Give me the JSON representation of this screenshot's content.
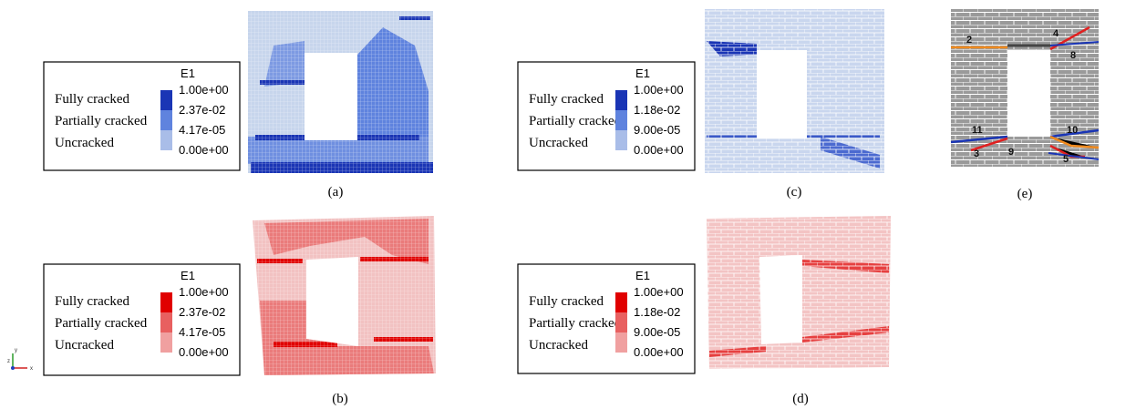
{
  "legends": [
    {
      "title": "E1",
      "labels": [
        "Fully cracked",
        "Partially cracked",
        "Uncracked"
      ],
      "ticks": [
        "1.00e+00",
        "2.37e-02",
        "4.17e-05",
        "0.00e+00"
      ]
    },
    {
      "title": "E1",
      "labels": [
        "Fully cracked",
        "Partially cracked",
        "Uncracked"
      ],
      "ticks": [
        "1.00e+00",
        "2.37e-02",
        "4.17e-05",
        "0.00e+00"
      ]
    },
    {
      "title": "E1",
      "labels": [
        "Fully cracked",
        "Partially cracked",
        "Uncracked"
      ],
      "ticks": [
        "1.00e+00",
        "1.18e-02",
        "9.00e-05",
        "0.00e+00"
      ]
    },
    {
      "title": "E1",
      "labels": [
        "Fully cracked",
        "Partially cracked",
        "Uncracked"
      ],
      "ticks": [
        "1.00e+00",
        "1.18e-02",
        "9.00e-05",
        "0.00e+00"
      ]
    }
  ],
  "captions": [
    "(a)",
    "(b)",
    "(c)",
    "(d)",
    "(e)"
  ],
  "crack_labels": [
    "2",
    "4",
    "8",
    "11",
    "10",
    "3",
    "9",
    "5"
  ],
  "axes": [
    "y",
    "z",
    "x"
  ]
}
